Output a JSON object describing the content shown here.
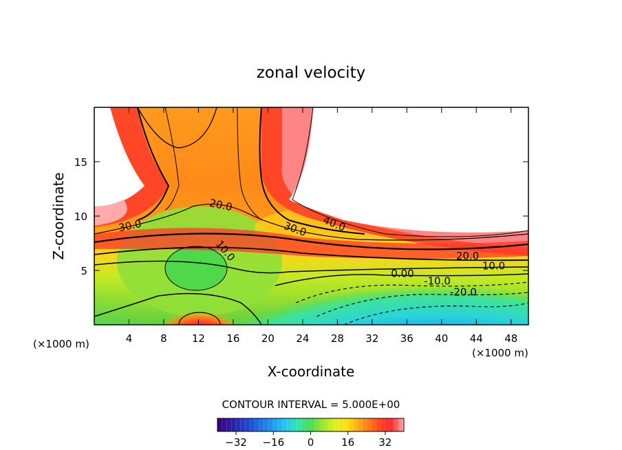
{
  "chart_data": {
    "type": "heatmap",
    "title": "zonal velocity",
    "xlabel": "X-coordinate",
    "ylabel": "Z-coordinate",
    "x_unit_left": "(×1000 m)",
    "x_unit_right": "(×1000 m)",
    "xlim": [
      0,
      50
    ],
    "ylim": [
      0,
      20
    ],
    "x_ticks": [
      4,
      8,
      12,
      16,
      20,
      24,
      28,
      32,
      36,
      40,
      44,
      48
    ],
    "y_ticks": [
      5,
      10,
      15
    ],
    "contour_interval_text": "CONTOUR INTERVAL = 5.000E+00",
    "colorbar": {
      "range": [
        -40,
        40
      ],
      "ticks": [
        -32,
        -16,
        0,
        16,
        32
      ],
      "colors": [
        "#3a007a",
        "#2a1fa6",
        "#1e4fd6",
        "#1f8ef0",
        "#22c6f2",
        "#2ee6b4",
        "#4ade50",
        "#9ce82a",
        "#dff01e",
        "#ffe012",
        "#ffb012",
        "#ff7c12",
        "#ff4618",
        "#ff2a2a",
        "#ff6d6d",
        "#ffaeae"
      ]
    },
    "contour_labels": [
      {
        "text": "40.0",
        "x": 27.5,
        "y": 9.0,
        "rot": 22
      },
      {
        "text": "30.0",
        "x": 23.0,
        "y": 8.5,
        "rot": 20
      },
      {
        "text": "30.0",
        "x": 4.2,
        "y": 8.8,
        "rot": -12
      },
      {
        "text": "20.0",
        "x": 14.5,
        "y": 10.7,
        "rot": 12
      },
      {
        "text": "10.0",
        "x": 14.8,
        "y": 6.6,
        "rot": 50
      },
      {
        "text": "20.0",
        "x": 43.0,
        "y": 6.0,
        "rot": 0
      },
      {
        "text": "10.0",
        "x": 46.0,
        "y": 5.1,
        "rot": 0
      },
      {
        "text": "0.00",
        "x": 35.5,
        "y": 4.4,
        "rot": 0
      },
      {
        "text": "-10.0",
        "x": 39.5,
        "y": 3.7,
        "rot": 0
      },
      {
        "text": "-20.0",
        "x": 42.5,
        "y": 2.7,
        "rot": 0
      }
    ]
  }
}
